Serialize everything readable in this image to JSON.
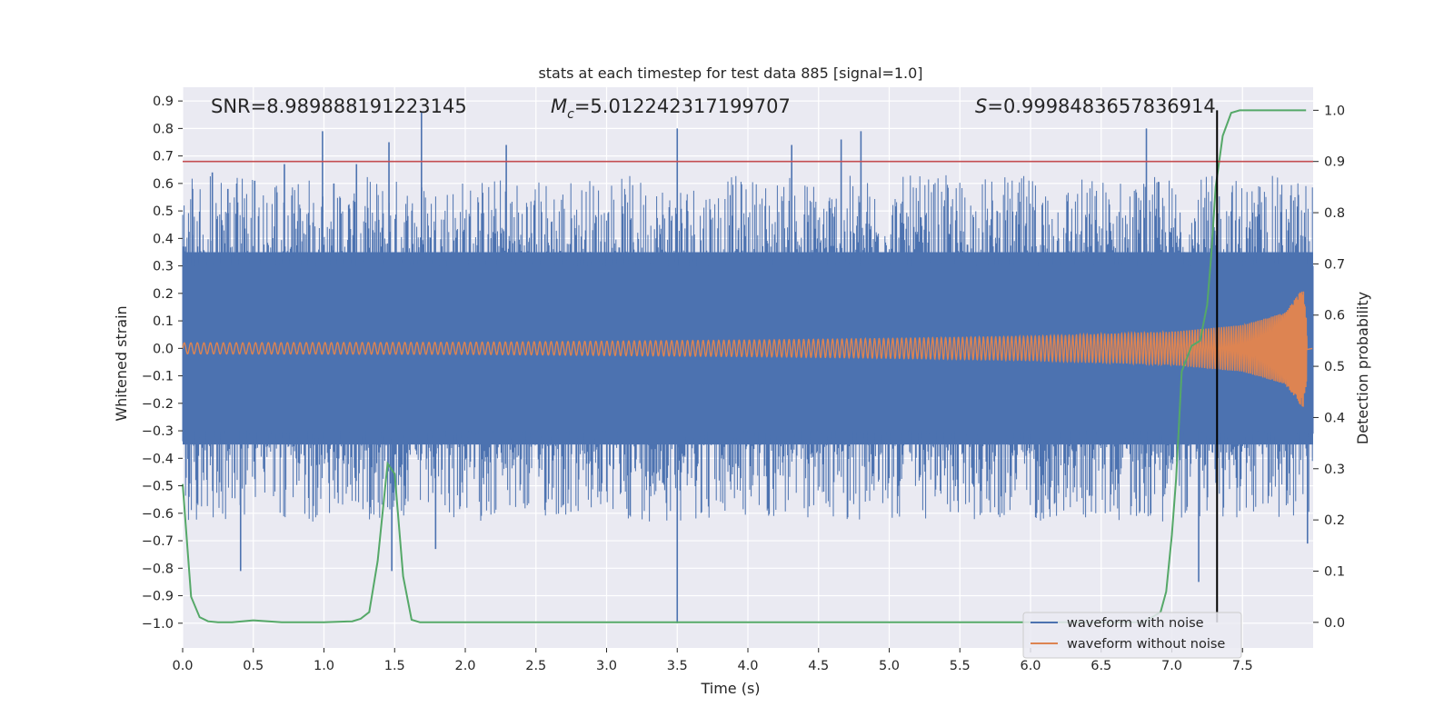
{
  "chart_data": {
    "type": "line",
    "title": "stats at each timestep for test data 885 [signal=1.0]",
    "xlabel": "Time (s)",
    "ylabel": "Whitened strain",
    "y2label": "Detection probability",
    "xlim": [
      0.0,
      8.0
    ],
    "ylim": [
      -1.09,
      0.95
    ],
    "y2lim": [
      -0.05,
      1.045
    ],
    "xticks": [
      "0.0",
      "0.5",
      "1.0",
      "1.5",
      "2.0",
      "2.5",
      "3.0",
      "3.5",
      "4.0",
      "4.5",
      "5.0",
      "5.5",
      "6.0",
      "6.5",
      "7.0",
      "7.5"
    ],
    "xtick_values": [
      0,
      0.5,
      1,
      1.5,
      2,
      2.5,
      3,
      3.5,
      4,
      4.5,
      5,
      5.5,
      6,
      6.5,
      7,
      7.5
    ],
    "yticks": [
      "0.9",
      "0.8",
      "0.7",
      "0.6",
      "0.5",
      "0.4",
      "0.3",
      "0.2",
      "0.1",
      "0.0",
      "−0.1",
      "−0.2",
      "−0.3",
      "−0.4",
      "−0.5",
      "−0.6",
      "−0.7",
      "−0.8",
      "−0.9",
      "−1.0"
    ],
    "ytick_values": [
      0.9,
      0.8,
      0.7,
      0.6,
      0.5,
      0.4,
      0.3,
      0.2,
      0.1,
      0.0,
      -0.1,
      -0.2,
      -0.3,
      -0.4,
      -0.5,
      -0.6,
      -0.7,
      -0.8,
      -0.9,
      -1.0
    ],
    "y2ticks": [
      "1.0",
      "0.9",
      "0.8",
      "0.7",
      "0.6",
      "0.5",
      "0.4",
      "0.3",
      "0.2",
      "0.1",
      "0.0"
    ],
    "y2tick_values": [
      1.0,
      0.9,
      0.8,
      0.7,
      0.6,
      0.5,
      0.4,
      0.3,
      0.2,
      0.1,
      0.0
    ],
    "annotations": {
      "snr": "SNR=8.989888191223145",
      "mc_symbol": "M",
      "mc_subscript": "c",
      "mc_value": "=5.012242317199707",
      "s_symbol": "S",
      "s_value": "=0.9998483657836914"
    },
    "threshold": {
      "y2": 0.9,
      "color": "#c44e52"
    },
    "detection_time": 7.32,
    "series": [
      {
        "name": "waveform with noise",
        "color": "#4c72b0",
        "description": "whitened noisy strain, dense band roughly between -0.35 and 0.35 with spikes",
        "band": [
          -0.35,
          0.35
        ],
        "spikes": [
          {
            "x": 0.02,
            "y": 0.37
          },
          {
            "x": 0.07,
            "y": 0.58
          },
          {
            "x": 0.21,
            "y": 0.64
          },
          {
            "x": 0.32,
            "y": 0.58
          },
          {
            "x": 0.41,
            "y": -0.81
          },
          {
            "x": 0.51,
            "y": 0.61
          },
          {
            "x": 0.72,
            "y": 0.67
          },
          {
            "x": 0.99,
            "y": 0.79
          },
          {
            "x": 1.07,
            "y": 0.6
          },
          {
            "x": 1.23,
            "y": 0.67
          },
          {
            "x": 1.46,
            "y": 0.75
          },
          {
            "x": 1.48,
            "y": -0.81
          },
          {
            "x": 1.69,
            "y": 0.86
          },
          {
            "x": 1.79,
            "y": -0.73
          },
          {
            "x": 2.29,
            "y": 0.74
          },
          {
            "x": 3.5,
            "y": 0.8
          },
          {
            "x": 3.5,
            "y": -1.0
          },
          {
            "x": 4.31,
            "y": 0.74
          },
          {
            "x": 4.66,
            "y": 0.76
          },
          {
            "x": 4.8,
            "y": 0.79
          },
          {
            "x": 6.82,
            "y": 0.8
          },
          {
            "x": 7.19,
            "y": -0.85
          },
          {
            "x": 7.96,
            "y": -0.71
          }
        ]
      },
      {
        "name": "waveform without noise",
        "color": "#dd8452",
        "description": "chirp waveform, amplitude grows toward merger near t=7.95 s",
        "envelope": [
          {
            "x": 0.0,
            "amp": 0.02
          },
          {
            "x": 2.0,
            "amp": 0.022
          },
          {
            "x": 4.0,
            "amp": 0.03
          },
          {
            "x": 5.0,
            "amp": 0.036
          },
          {
            "x": 6.0,
            "amp": 0.044
          },
          {
            "x": 7.0,
            "amp": 0.06
          },
          {
            "x": 7.5,
            "amp": 0.085
          },
          {
            "x": 7.8,
            "amp": 0.13
          },
          {
            "x": 7.93,
            "amp": 0.22
          },
          {
            "x": 7.96,
            "amp": 0.1
          },
          {
            "x": 8.0,
            "amp": 0.0
          }
        ]
      },
      {
        "name": "detection probability",
        "color": "#55a868",
        "axis": "y2",
        "x": [
          0.0,
          0.06,
          0.12,
          0.18,
          0.25,
          0.35,
          0.5,
          0.7,
          1.0,
          1.2,
          1.26,
          1.32,
          1.38,
          1.45,
          1.5,
          1.56,
          1.62,
          1.68,
          2.0,
          3.0,
          4.0,
          5.0,
          6.0,
          6.5,
          6.8,
          6.92,
          6.96,
          7.0,
          7.03,
          7.07,
          7.14,
          7.2,
          7.25,
          7.28,
          7.31,
          7.36,
          7.42,
          7.48,
          7.55,
          7.7,
          7.95
        ],
        "y": [
          0.27,
          0.05,
          0.01,
          0.002,
          0.0,
          0.0,
          0.004,
          0.0,
          0.0,
          0.002,
          0.007,
          0.02,
          0.12,
          0.31,
          0.29,
          0.09,
          0.005,
          0.0,
          0.0,
          0.0,
          0.0,
          0.0,
          0.0,
          0.0,
          0.0,
          0.02,
          0.06,
          0.17,
          0.28,
          0.49,
          0.54,
          0.55,
          0.62,
          0.72,
          0.85,
          0.95,
          0.995,
          1.0,
          1.0,
          1.0,
          1.0
        ]
      }
    ],
    "legend": {
      "position": "lower-right",
      "entries": [
        {
          "label": "waveform with noise",
          "color": "#4c72b0"
        },
        {
          "label": "waveform without noise",
          "color": "#dd8452"
        }
      ]
    },
    "background_color": "#eaeaf2",
    "grid": true
  }
}
